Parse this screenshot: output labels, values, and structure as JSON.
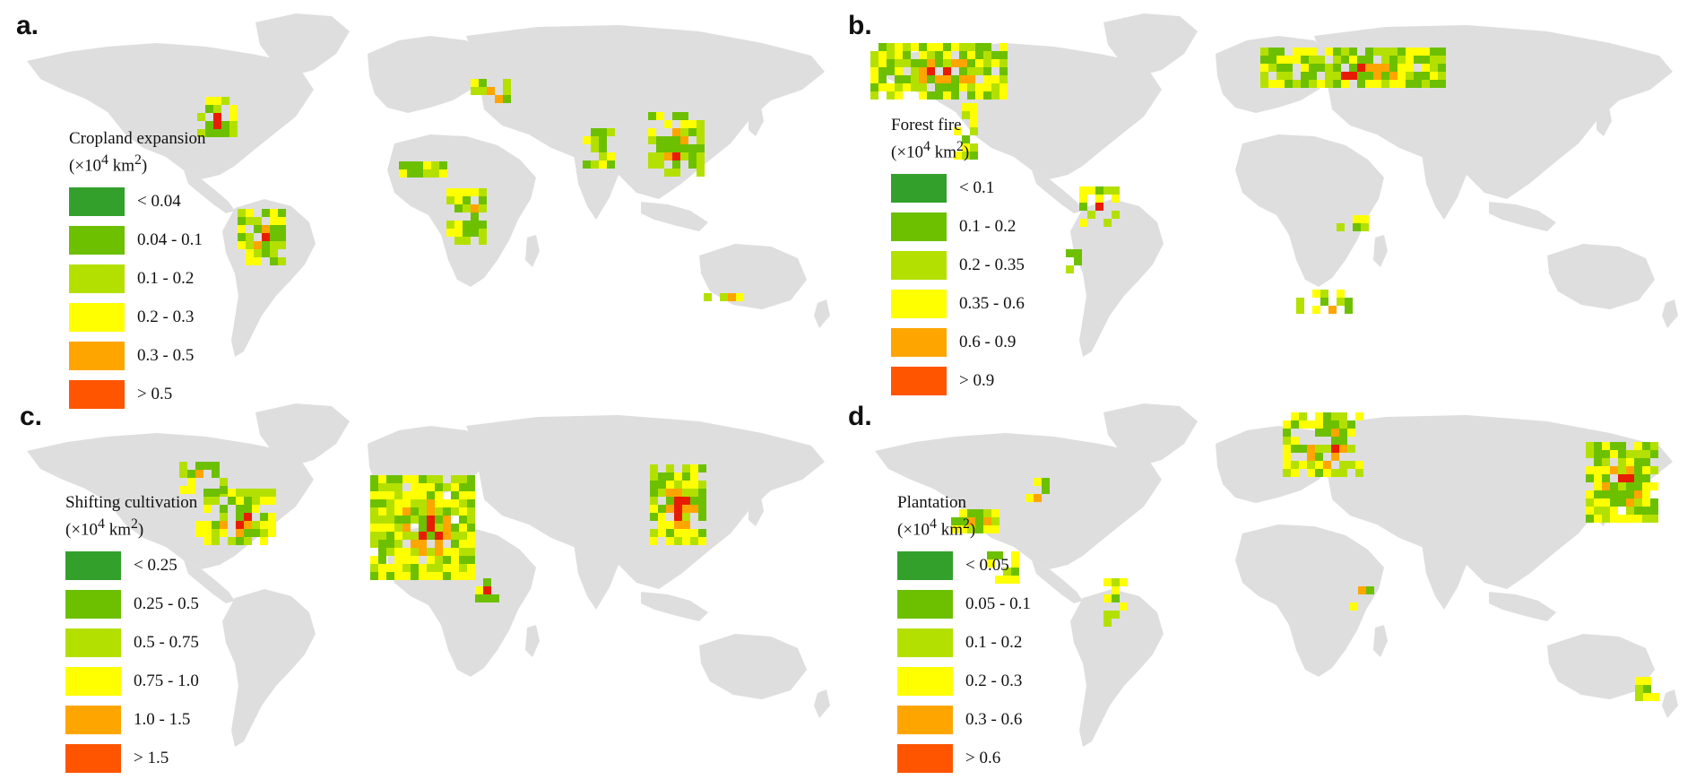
{
  "colors": {
    "land": "#dedede",
    "classes": [
      "#33a02c",
      "#6cc000",
      "#b4e000",
      "#ffff00",
      "#ffa500",
      "#ff5500"
    ],
    "hotspot": "#e81c00"
  },
  "unit_text": {
    "prefix": "(×10",
    "exp": "4",
    "mid": " km",
    "sq": "2",
    "suffix": ")"
  },
  "panels": [
    {
      "id": "a",
      "label": "a.",
      "legend_title": "Cropland expansion",
      "legend_items": [
        "< 0.04",
        "0.04 - 0.1",
        "0.1 - 0.2",
        "0.2 - 0.3",
        "0.3 - 0.5",
        "> 0.5"
      ]
    },
    {
      "id": "b",
      "label": "b.",
      "legend_title": "Forest fire",
      "legend_items": [
        "< 0.1",
        "0.1 - 0.2",
        "0.2 - 0.35",
        "0.35 - 0.6",
        "0.6 - 0.9",
        "> 0.9"
      ]
    },
    {
      "id": "c",
      "label": "c.",
      "legend_title": "Shifting cultivation",
      "legend_items": [
        "< 0.25",
        "0.25 - 0.5",
        "0.5 - 0.75",
        "0.75 - 1.0",
        "1.0 - 1.5",
        "> 1.5"
      ]
    },
    {
      "id": "d",
      "label": "d.",
      "legend_title": "Plantation",
      "legend_items": [
        "< 0.05",
        "0.05 - 0.1",
        "0.1 - 0.2",
        "0.2 - 0.3",
        "0.3 - 0.6",
        "> 0.6"
      ]
    }
  ]
}
